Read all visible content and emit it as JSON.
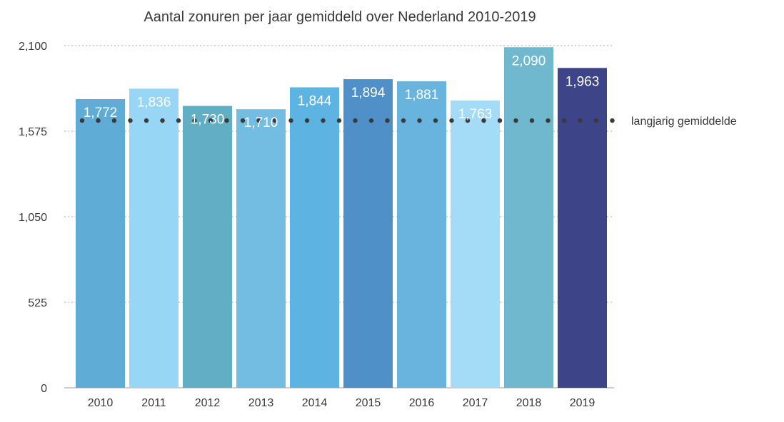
{
  "chart_data": {
    "type": "bar",
    "title": "Aantal zonuren per jaar gemiddeld over Nederland 2010-2019",
    "xlabel": "",
    "ylabel": "",
    "categories": [
      "2010",
      "2011",
      "2012",
      "2013",
      "2014",
      "2015",
      "2016",
      "2017",
      "2018",
      "2019"
    ],
    "values": [
      1772,
      1836,
      1730,
      1710,
      1844,
      1894,
      1881,
      1763,
      2090,
      1963
    ],
    "data_labels": [
      "1,772",
      "1,836",
      "1,730",
      "1,710",
      "1,844",
      "1,894",
      "1,881",
      "1,763",
      "2,090",
      "1,963"
    ],
    "colors": [
      "#5fadd6",
      "#98d6f6",
      "#62aec4",
      "#74bde2",
      "#5db4e2",
      "#4f90c9",
      "#68b4de",
      "#a4dcf8",
      "#6fb8cd",
      "#3d4487"
    ],
    "ylim": [
      0,
      2100
    ],
    "yticks": [
      0,
      525,
      1050,
      1575,
      2100
    ],
    "ytick_labels": [
      "0",
      "525",
      "1,050",
      "1,575",
      "2,100"
    ],
    "grid": "horizontal dotted",
    "reference_line": {
      "label": "langjarig gemiddelde",
      "value": 1640,
      "style": "dotted",
      "color": "#3a3a3a"
    }
  }
}
